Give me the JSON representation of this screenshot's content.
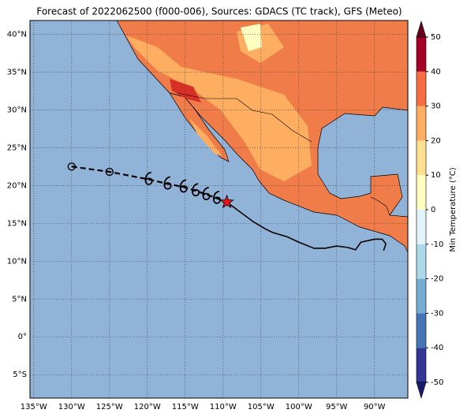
{
  "map": {
    "title": "Forecast of 2022062500 (f000-006), Sources: GDACS (TC track), GFS (Meteo)",
    "xlim": [
      -135.5,
      -85.6
    ],
    "ylim": [
      -8.1,
      41.8
    ],
    "grid": true,
    "xticks": [
      {
        "value": -135,
        "label": "135°W"
      },
      {
        "value": -130,
        "label": "130°W"
      },
      {
        "value": -125,
        "label": "125°W"
      },
      {
        "value": -120,
        "label": "120°W"
      },
      {
        "value": -115,
        "label": "115°W"
      },
      {
        "value": -110,
        "label": "110°W"
      },
      {
        "value": -105,
        "label": "105°W"
      },
      {
        "value": -100,
        "label": "100°W"
      },
      {
        "value": -95,
        "label": "95°W"
      },
      {
        "value": -90,
        "label": "90°W"
      }
    ],
    "yticks": [
      {
        "value": -5,
        "label": "5°S"
      },
      {
        "value": 0,
        "label": "0°"
      },
      {
        "value": 5,
        "label": "5°N"
      },
      {
        "value": 10,
        "label": "10°N"
      },
      {
        "value": 15,
        "label": "15°N"
      },
      {
        "value": 20,
        "label": "20°N"
      },
      {
        "value": 25,
        "label": "25°N"
      },
      {
        "value": 30,
        "label": "30°N"
      },
      {
        "value": 35,
        "label": "35°N"
      },
      {
        "value": 40,
        "label": "40°N"
      }
    ],
    "colorbar": {
      "label": "Min Temperature (°C)",
      "lim": [
        -50,
        50
      ],
      "ticks": [
        -50,
        -40,
        -30,
        -20,
        -10,
        0,
        10,
        20,
        30,
        40,
        50
      ],
      "colors": [
        "#313695",
        "#4575b4",
        "#74add1",
        "#abd9e9",
        "#e0f3f8",
        "#ffffbf",
        "#fee090",
        "#fdae61",
        "#f46d43",
        "#a50026"
      ],
      "under_color": "#1a1a6e",
      "over_color": "#67001f"
    },
    "track": {
      "forecast": {
        "lon": [
          -130,
          -125,
          -119.8,
          -117.3,
          -115.2,
          -113.6,
          -112.2,
          -110.8
        ],
        "lat": [
          22.5,
          21.8,
          20.8,
          20.2,
          19.8,
          19.3,
          18.8,
          18.3
        ],
        "symbol": [
          "circle",
          "circle",
          "storm",
          "storm",
          "storm",
          "storm",
          "storm",
          "storm"
        ]
      },
      "current": {
        "lon": -109.5,
        "lat": 17.8
      },
      "past": {
        "lon": [
          -109.5,
          -106,
          -104.5,
          -103.5,
          -101.5,
          -100,
          -98,
          -96.5,
          -95,
          -93.5,
          -92.5,
          -91.8,
          -90,
          -89,
          -88.5,
          -88.8
        ],
        "lat": [
          17.8,
          15.2,
          14.3,
          13.8,
          13.2,
          12.5,
          11.7,
          11.7,
          12,
          11.8,
          11.5,
          12.5,
          12.9,
          12.9,
          12.3,
          11.4
        ]
      }
    }
  }
}
